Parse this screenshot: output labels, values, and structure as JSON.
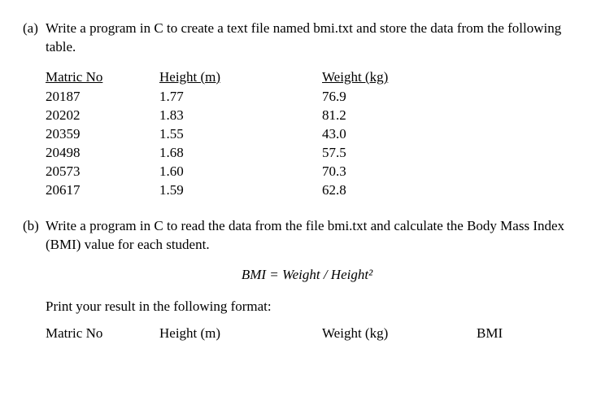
{
  "partA": {
    "label": "(a)",
    "text": "Write a program in C to create a text file named bmi.txt and store the data from the following table."
  },
  "table": {
    "headers": {
      "m": "Matric No",
      "h": "Height (m)",
      "w": "Weight (kg)"
    },
    "rows": [
      {
        "m": "20187",
        "h": "1.77",
        "w": "76.9"
      },
      {
        "m": "20202",
        "h": "1.83",
        "w": "81.2"
      },
      {
        "m": "20359",
        "h": "1.55",
        "w": "43.0"
      },
      {
        "m": "20498",
        "h": "1.68",
        "w": "57.5"
      },
      {
        "m": "20573",
        "h": "1.60",
        "w": "70.3"
      },
      {
        "m": "20617",
        "h": "1.59",
        "w": "62.8"
      }
    ]
  },
  "partB": {
    "label": "(b)",
    "text": "Write a program in C to read the data from the file bmi.txt and calculate the Body Mass Index (BMI) value for each student."
  },
  "formula": "BMI = Weight / Height²",
  "printLine": "Print your result in the following format:",
  "resultHeaders": {
    "m": "Matric No",
    "h": "Height (m)",
    "w": "Weight (kg)",
    "b": "BMI"
  }
}
